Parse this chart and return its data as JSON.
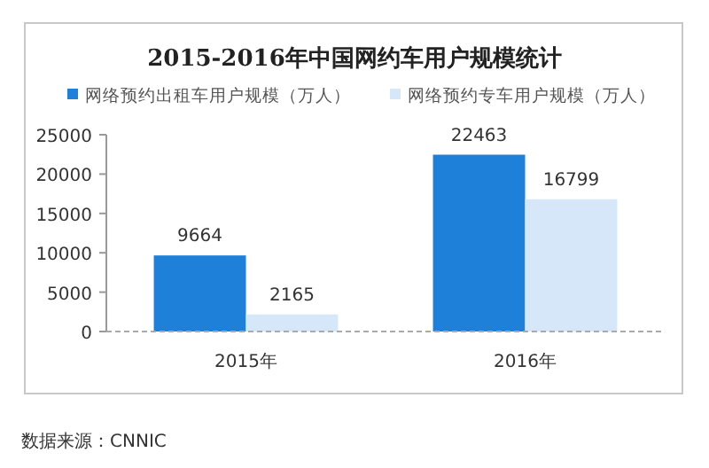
{
  "chart_data": {
    "type": "bar",
    "title": "2015-2016年中国网约车用户规模统计",
    "categories": [
      "2015年",
      "2016年"
    ],
    "series": [
      {
        "name": "网络预约出租车用户规模（万人）",
        "color": "#1e80d8",
        "values": [
          9664,
          22463
        ]
      },
      {
        "name": "网络预约专车用户规模（万人）",
        "color": "#d5e7f8",
        "values": [
          2165,
          16799
        ]
      }
    ],
    "ylim": [
      0,
      25000
    ],
    "yticks": [
      0,
      5000,
      10000,
      15000,
      20000,
      25000
    ],
    "data_labels": true,
    "legend": "top",
    "grid": false,
    "annotations": [
      "数据来源：CNNIC"
    ]
  }
}
